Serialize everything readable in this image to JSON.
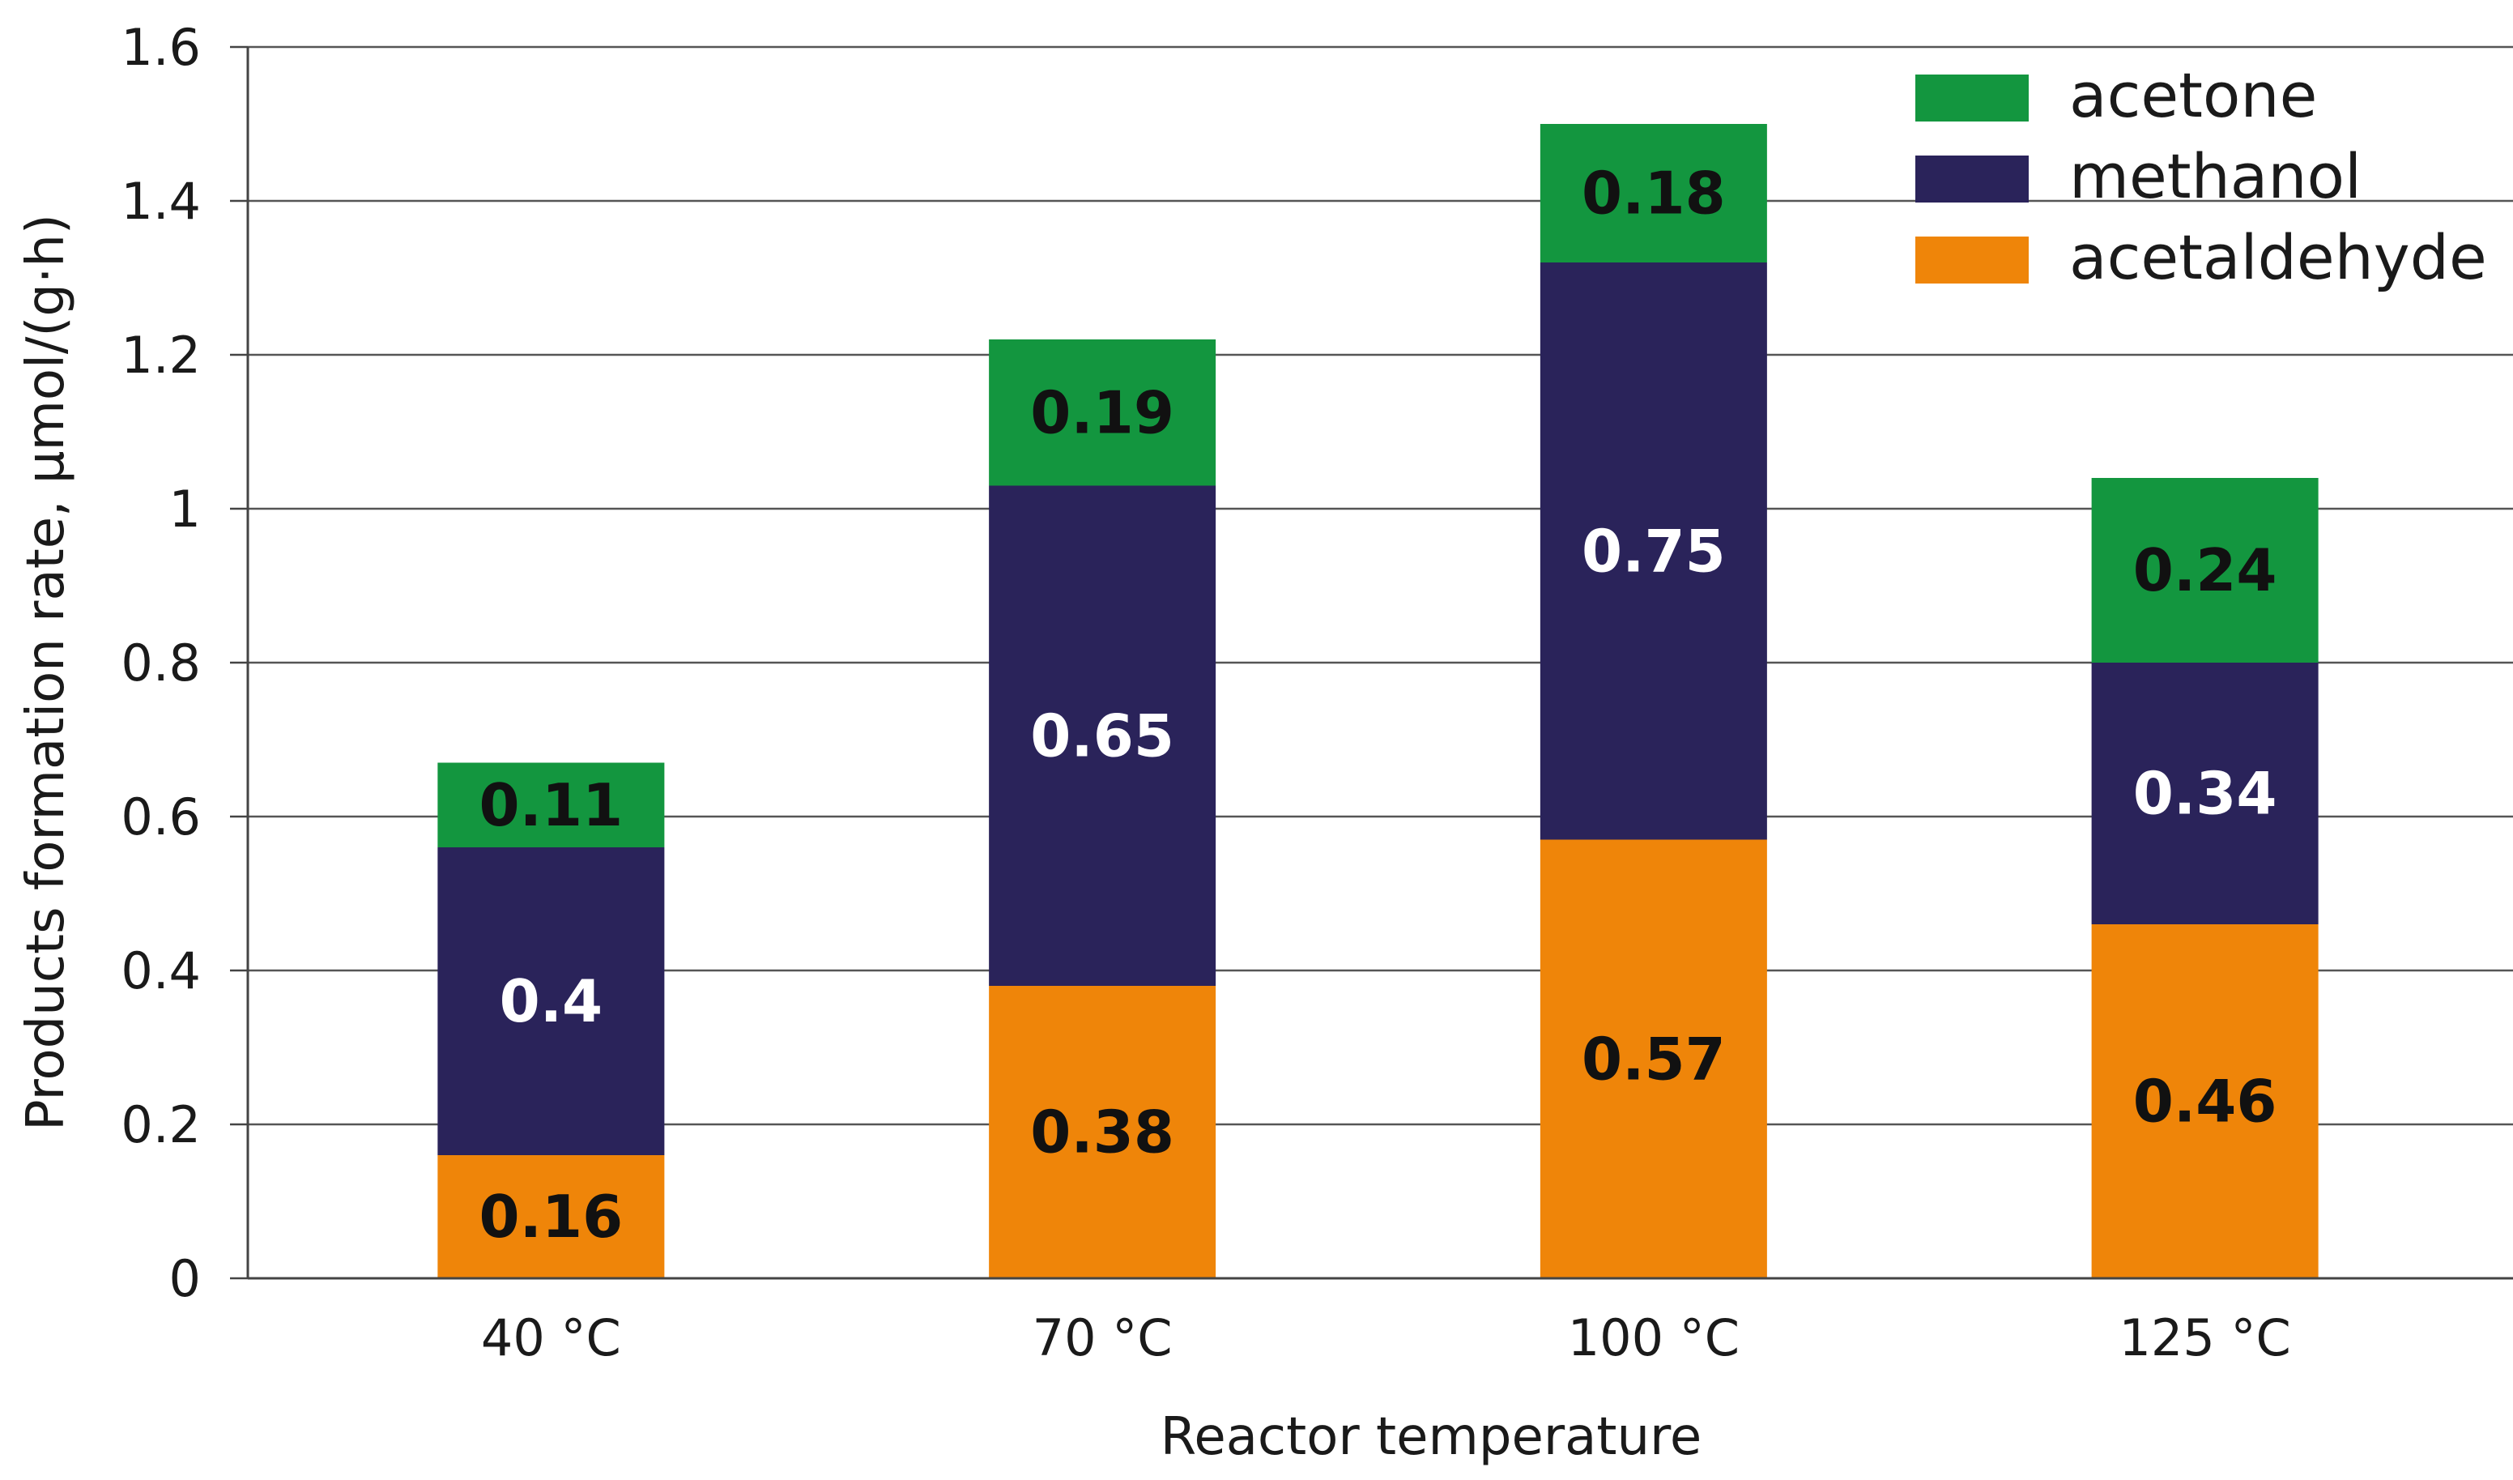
{
  "chart_data": {
    "type": "bar",
    "stacked": true,
    "categories": [
      "40 °C",
      "70 °C",
      "100 °C",
      "125 °C"
    ],
    "series": [
      {
        "name": "acetaldehyde",
        "color": "#EF8509",
        "label_color": "#111111",
        "values": [
          0.16,
          0.38,
          0.57,
          0.46
        ],
        "labels": [
          "0.16",
          "0.38",
          "0.57",
          "0.46"
        ]
      },
      {
        "name": "methanol",
        "color": "#2A235A",
        "label_color": "#ffffff",
        "values": [
          0.4,
          0.65,
          0.75,
          0.34
        ],
        "labels": [
          "0.4",
          "0.65",
          "0.75",
          "0.34"
        ]
      },
      {
        "name": "acetone",
        "color": "#13963F",
        "label_color": "#111111",
        "values": [
          0.11,
          0.19,
          0.18,
          0.24
        ],
        "labels": [
          "0.11",
          "0.19",
          "0.18",
          "0.24"
        ]
      }
    ],
    "legend_order": [
      "acetone",
      "methanol",
      "acetaldehyde"
    ],
    "title": "",
    "xlabel": "Reactor temperature",
    "ylabel": "Products formation rate,  μmol/(g·h)",
    "ylim": [
      0,
      1.6
    ],
    "yticks": [
      0,
      0.2,
      0.4,
      0.6,
      0.8,
      1,
      1.2,
      1.4,
      1.6
    ],
    "ytick_labels": [
      "0",
      "0.2",
      "0.4",
      "0.6",
      "0.8",
      "1",
      "1.2",
      "1.4",
      "1.6"
    ],
    "grid": true,
    "legend_position": "top-right"
  }
}
